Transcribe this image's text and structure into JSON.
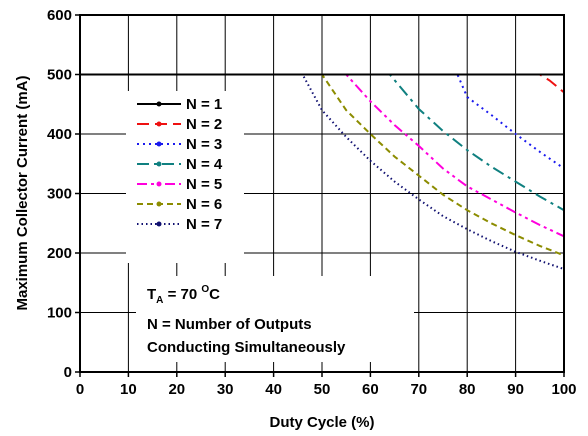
{
  "chart_data": {
    "type": "line",
    "xlabel": "Duty Cycle (%)",
    "ylabel": "Maximum Collector Current (mA)",
    "xlim": [
      0,
      100
    ],
    "ylim": [
      0,
      600
    ],
    "xticks": [
      0,
      10,
      20,
      30,
      40,
      50,
      60,
      70,
      80,
      90,
      100
    ],
    "yticks": [
      0,
      100,
      200,
      300,
      400,
      500,
      600
    ],
    "grid": true,
    "legend_placement": "left",
    "series": [
      {
        "name": "N = 1",
        "color": "#000000",
        "dash": "solid",
        "x": [
          0,
          100
        ],
        "y": [
          500,
          500
        ]
      },
      {
        "name": "N = 2",
        "color": "#ee1111",
        "dash": "dash",
        "x": [
          0,
          95,
          97,
          100
        ],
        "y": [
          500,
          500,
          490,
          470
        ]
      },
      {
        "name": "N = 3",
        "color": "#1a1aee",
        "dash": "dot",
        "x": [
          0,
          78,
          80,
          85,
          90,
          95,
          100
        ],
        "y": [
          500,
          500,
          462,
          432,
          400,
          370,
          342
        ]
      },
      {
        "name": "N = 4",
        "color": "#108080",
        "dash": "dashdot",
        "x": [
          0,
          64,
          70,
          75,
          80,
          85,
          90,
          95,
          100
        ],
        "y": [
          500,
          500,
          442,
          405,
          373,
          345,
          320,
          295,
          272
        ]
      },
      {
        "name": "N = 5",
        "color": "#ff00dd",
        "dash": "dashdotdot",
        "x": [
          0,
          55,
          60,
          65,
          70,
          75,
          80,
          85,
          90,
          95,
          100
        ],
        "y": [
          500,
          500,
          455,
          415,
          380,
          342,
          312,
          290,
          268,
          247,
          228
        ]
      },
      {
        "name": "N = 6",
        "color": "#8c8c00",
        "dash": "shortdash",
        "x": [
          0,
          50,
          55,
          60,
          65,
          70,
          75,
          80,
          85,
          90,
          95,
          100
        ],
        "y": [
          500,
          500,
          440,
          400,
          362,
          330,
          298,
          272,
          250,
          230,
          212,
          196
        ]
      },
      {
        "name": "N = 7",
        "color": "#101070",
        "dash": "shortdot",
        "x": [
          0,
          46,
          50,
          55,
          60,
          65,
          70,
          75,
          80,
          85,
          90,
          95,
          100
        ],
        "y": [
          500,
          500,
          440,
          395,
          355,
          320,
          290,
          262,
          240,
          220,
          202,
          187,
          173
        ]
      }
    ],
    "annotations": {
      "ta_prefix": "T",
      "ta_sub": "A",
      "ta_mid": " = 70 ",
      "ta_sup": "O",
      "ta_unit": "C",
      "line2": "N = Number of Outputs",
      "line3": "Conducting Simultaneously"
    }
  }
}
